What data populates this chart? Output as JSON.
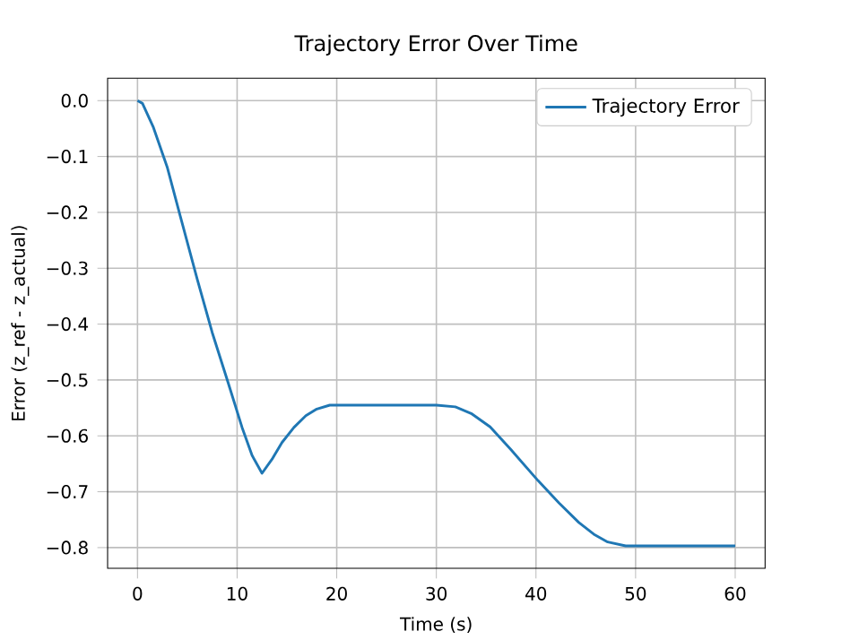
{
  "chart_data": {
    "type": "line",
    "title": "Trajectory Error Over Time",
    "xlabel": "Time (s)",
    "ylabel": "Error (z_ref - z_actual)",
    "x": [
      0,
      0.5,
      1.6,
      3,
      4.3,
      6,
      7.5,
      9.1,
      10.5,
      11.5,
      12.5,
      13.5,
      14.5,
      15.7,
      16.9,
      18,
      19.3,
      22,
      26,
      30,
      31.9,
      33.5,
      35.4,
      37.5,
      40.2,
      42.3,
      44.3,
      45.8,
      47.2,
      49,
      52,
      56,
      60
    ],
    "series": [
      {
        "name": "Trajectory Error",
        "color": "#1f77b4",
        "values": [
          0,
          -0.005,
          -0.048,
          -0.12,
          -0.207,
          -0.32,
          -0.415,
          -0.505,
          -0.585,
          -0.635,
          -0.667,
          -0.642,
          -0.612,
          -0.585,
          -0.564,
          -0.552,
          -0.545,
          -0.545,
          -0.545,
          -0.545,
          -0.548,
          -0.56,
          -0.584,
          -0.625,
          -0.68,
          -0.72,
          -0.755,
          -0.776,
          -0.79,
          -0.797,
          -0.797,
          -0.797,
          -0.797
        ]
      }
    ],
    "xlim": [
      -3,
      63
    ],
    "ylim": [
      -0.837,
      0.04
    ],
    "xticks": [
      0,
      10,
      20,
      30,
      40,
      50,
      60
    ],
    "yticks": [
      {
        "value": 0,
        "label": "0.0"
      },
      {
        "value": -0.1,
        "label": "−0.1"
      },
      {
        "value": -0.2,
        "label": "−0.2"
      },
      {
        "value": -0.3,
        "label": "−0.3"
      },
      {
        "value": -0.4,
        "label": "−0.4"
      },
      {
        "value": -0.5,
        "label": "−0.5"
      },
      {
        "value": -0.6,
        "label": "−0.6"
      },
      {
        "value": -0.7,
        "label": "−0.7"
      },
      {
        "value": -0.8,
        "label": "−0.8"
      }
    ],
    "grid": true,
    "legend": "top right",
    "marker": "none",
    "line_style": "solid"
  }
}
